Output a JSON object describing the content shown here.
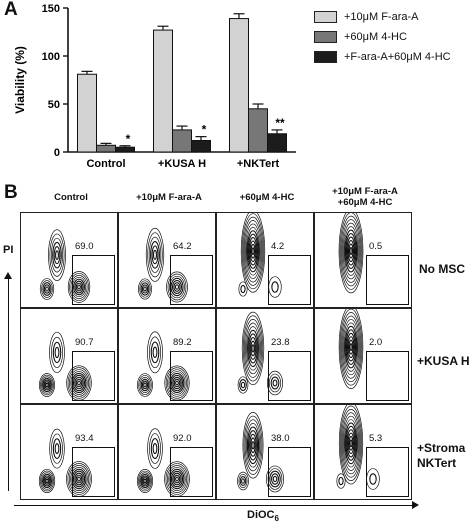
{
  "panel_a": {
    "letter": "A"
  },
  "panel_b": {
    "letter": "B",
    "y_axis_label": "PI",
    "x_axis_label_main": "DiOC",
    "x_axis_label_sub": "6",
    "columns": [
      {
        "line1": "Control",
        "line2": ""
      },
      {
        "line1": "+10μM F-ara-A",
        "line2": ""
      },
      {
        "line1": "+60μM 4-HC",
        "line2": ""
      },
      {
        "line1": "+10μM F-ara-A",
        "line2": "+60μM 4-HC"
      }
    ],
    "rows": [
      {
        "line1": "No MSC",
        "line2": ""
      },
      {
        "line1": "+KUSA H",
        "line2": ""
      },
      {
        "line1": "+Stroma",
        "line2": "NKTert"
      }
    ],
    "gate_values": [
      [
        "69.0",
        "64.2",
        "4.2",
        "0.5"
      ],
      [
        "90.7",
        "89.2",
        "23.8",
        "2.0"
      ],
      [
        "93.4",
        "92.0",
        "38.0",
        "5.3"
      ]
    ]
  },
  "chart_data": {
    "type": "bar",
    "title": "",
    "xlabel": "",
    "ylabel": "Viability (%)",
    "ylim": [
      0,
      150
    ],
    "yticks": [
      0,
      50,
      100,
      150
    ],
    "categories": [
      "Control",
      "+KUSA H",
      "+NKTert"
    ],
    "series": [
      {
        "name": "+10μM F-ara-A",
        "color": "#d2d2d2",
        "values": [
          81,
          127,
          139
        ],
        "errors": [
          3,
          4,
          5
        ]
      },
      {
        "name": "+60μM 4-HC",
        "color": "#777777",
        "values": [
          7,
          23,
          45
        ],
        "errors": [
          2,
          4,
          5
        ]
      },
      {
        "name": "+F-ara-A+60μM 4-HC",
        "color": "#1c1c1c",
        "values": [
          5,
          12,
          19
        ],
        "errors": [
          1.5,
          4,
          4
        ]
      }
    ],
    "annotations": [
      "*",
      "*",
      "**"
    ],
    "legend_position": "top-right",
    "grid": false
  }
}
